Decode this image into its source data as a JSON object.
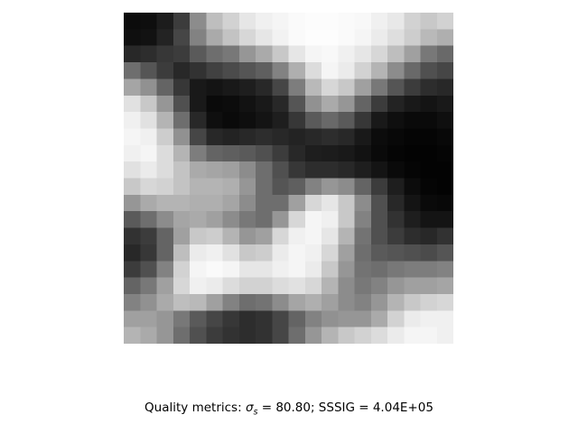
{
  "caption": {
    "prefix": "Quality metrics: ",
    "sigma_symbol": "σ",
    "sigma_subscript": "s",
    "sigma_value": " = 80.80; SSSIG = 4.04E+05"
  },
  "image": {
    "grayscale": [
      [
        12,
        14,
        28,
        60,
        140,
        190,
        210,
        230,
        240,
        245,
        250,
        252,
        252,
        250,
        248,
        240,
        232,
        210,
        200,
        210
      ],
      [
        15,
        18,
        35,
        70,
        130,
        170,
        195,
        215,
        230,
        242,
        250,
        253,
        253,
        250,
        245,
        235,
        222,
        205,
        185,
        175
      ],
      [
        40,
        45,
        55,
        60,
        90,
        110,
        120,
        150,
        170,
        200,
        230,
        245,
        248,
        240,
        230,
        215,
        190,
        160,
        120,
        105
      ],
      [
        110,
        85,
        60,
        40,
        50,
        65,
        75,
        85,
        95,
        130,
        175,
        220,
        245,
        235,
        210,
        180,
        140,
        105,
        80,
        70
      ],
      [
        165,
        145,
        100,
        55,
        25,
        20,
        25,
        30,
        40,
        70,
        125,
        185,
        215,
        200,
        160,
        120,
        85,
        60,
        45,
        40
      ],
      [
        225,
        200,
        150,
        80,
        25,
        10,
        12,
        18,
        25,
        40,
        85,
        145,
        170,
        150,
        100,
        60,
        35,
        25,
        20,
        25
      ],
      [
        240,
        225,
        180,
        110,
        40,
        15,
        10,
        14,
        20,
        30,
        55,
        90,
        105,
        90,
        55,
        25,
        15,
        10,
        10,
        15
      ],
      [
        245,
        240,
        205,
        145,
        70,
        40,
        35,
        40,
        45,
        40,
        35,
        40,
        45,
        40,
        25,
        12,
        8,
        5,
        5,
        8
      ],
      [
        240,
        245,
        220,
        180,
        125,
        100,
        95,
        90,
        80,
        60,
        40,
        30,
        28,
        25,
        18,
        10,
        5,
        3,
        3,
        5
      ],
      [
        225,
        235,
        220,
        195,
        170,
        165,
        160,
        140,
        110,
        80,
        55,
        45,
        45,
        40,
        30,
        20,
        10,
        5,
        3,
        3
      ],
      [
        200,
        215,
        210,
        195,
        180,
        180,
        175,
        150,
        110,
        85,
        95,
        130,
        150,
        140,
        100,
        60,
        30,
        12,
        5,
        3
      ],
      [
        150,
        170,
        180,
        180,
        175,
        175,
        165,
        140,
        110,
        110,
        160,
        215,
        230,
        200,
        140,
        80,
        40,
        20,
        10,
        8
      ],
      [
        90,
        110,
        140,
        165,
        170,
        160,
        140,
        120,
        110,
        150,
        215,
        245,
        240,
        200,
        130,
        80,
        50,
        30,
        20,
        20
      ],
      [
        50,
        60,
        100,
        160,
        200,
        205,
        180,
        150,
        160,
        215,
        240,
        245,
        230,
        180,
        115,
        80,
        60,
        45,
        40,
        50
      ],
      [
        40,
        55,
        100,
        190,
        235,
        240,
        225,
        200,
        205,
        235,
        245,
        240,
        215,
        160,
        110,
        90,
        85,
        80,
        75,
        85
      ],
      [
        60,
        80,
        130,
        210,
        245,
        250,
        245,
        230,
        230,
        240,
        245,
        235,
        200,
        150,
        115,
        110,
        120,
        125,
        125,
        130
      ],
      [
        100,
        120,
        160,
        215,
        240,
        235,
        220,
        210,
        210,
        220,
        225,
        215,
        180,
        140,
        120,
        130,
        150,
        160,
        160,
        165
      ],
      [
        130,
        145,
        170,
        190,
        185,
        160,
        130,
        110,
        115,
        140,
        165,
        175,
        160,
        140,
        130,
        150,
        180,
        200,
        210,
        215
      ],
      [
        160,
        160,
        150,
        120,
        90,
        70,
        55,
        45,
        50,
        70,
        100,
        130,
        145,
        150,
        150,
        170,
        210,
        235,
        240,
        240
      ],
      [
        180,
        170,
        150,
        110,
        80,
        60,
        50,
        45,
        50,
        70,
        110,
        150,
        180,
        200,
        210,
        220,
        235,
        245,
        245,
        240
      ]
    ]
  }
}
